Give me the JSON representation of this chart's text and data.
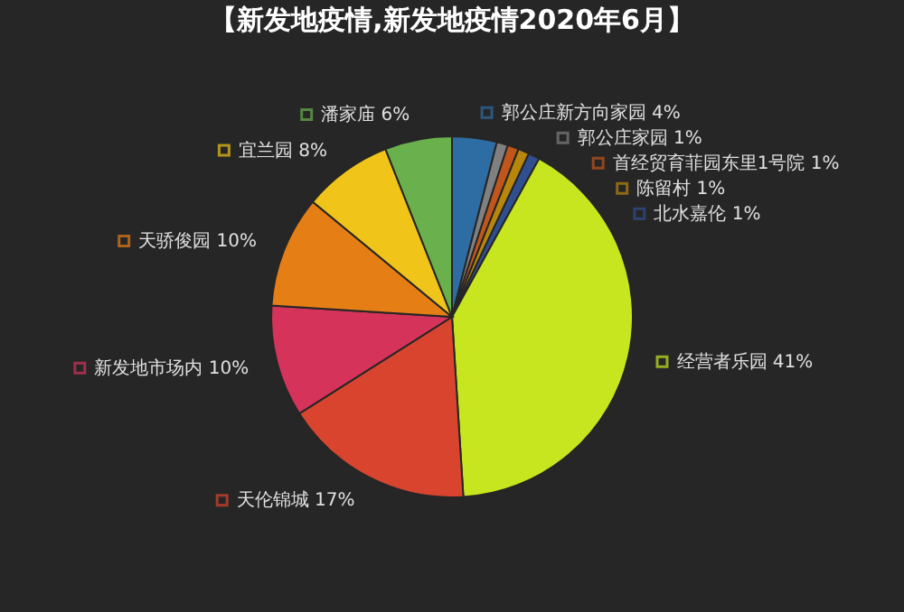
{
  "chart_data": {
    "type": "pie",
    "title": "【新发地疫情,新发地疫情2020年6月】",
    "categories": [
      "郭公庄新方向家园",
      "郭公庄家园",
      "首经贸育菲园东里1号院",
      "陈留村",
      "北水嘉伦",
      "经营者乐园",
      "天伦锦城",
      "新发地市场内",
      "天骄俊园",
      "宜兰园",
      "潘家庙"
    ],
    "values": [
      4,
      1,
      1,
      1,
      1,
      41,
      17,
      10,
      10,
      8,
      6
    ],
    "colors": [
      "#2e6da4",
      "#808080",
      "#c0561c",
      "#b8860b",
      "#2f4f8f",
      "#c8e620",
      "#d9442e",
      "#d6335a",
      "#e67e16",
      "#f0c419",
      "#6ab04c"
    ],
    "legend": "right",
    "value_labels": [
      "4%",
      "1%",
      "1%",
      "1%",
      "1%",
      "41%",
      "17%",
      "10%",
      "10%",
      "8%",
      "6%"
    ]
  }
}
